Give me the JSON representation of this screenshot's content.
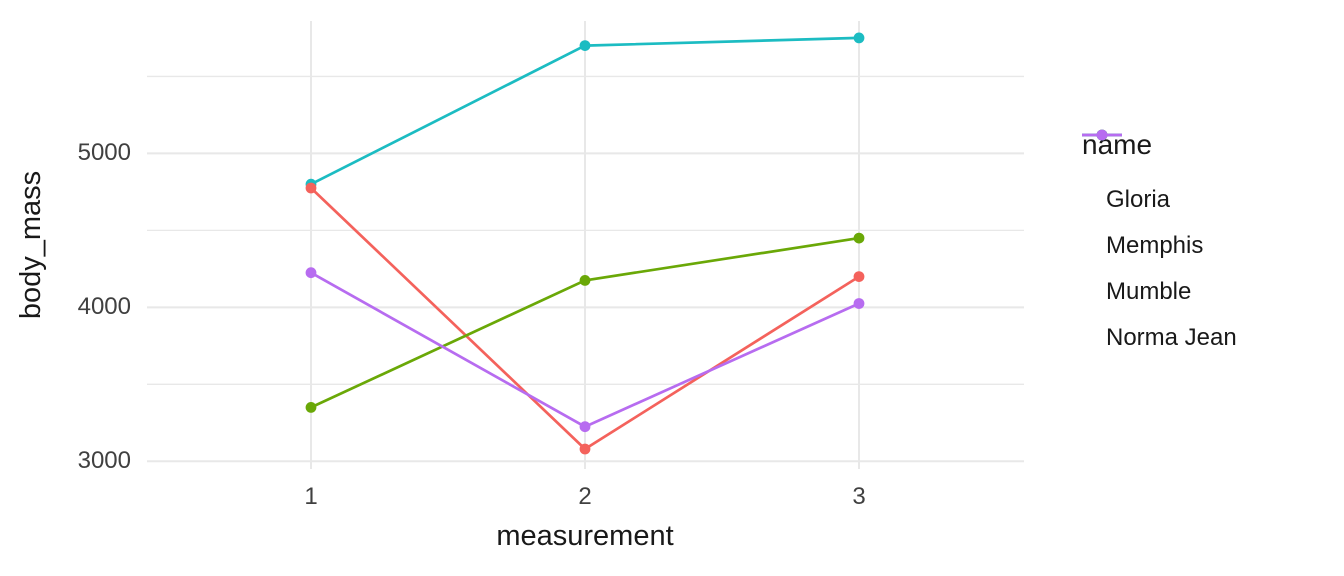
{
  "chart_data": {
    "type": "line",
    "title": "",
    "xlabel": "measurement",
    "ylabel": "body_mass",
    "categories": [
      "1",
      "2",
      "3"
    ],
    "series": [
      {
        "name": "Gloria",
        "color": "#F4625C",
        "values": [
          4775,
          3080,
          4200
        ]
      },
      {
        "name": "Memphis",
        "color": "#6AA807",
        "values": [
          3350,
          4175,
          4450
        ]
      },
      {
        "name": "Mumble",
        "color": "#1CBCC2",
        "values": [
          4800,
          5700,
          5750
        ]
      },
      {
        "name": "Norma Jean",
        "color": "#B76CF0",
        "values": [
          4225,
          3225,
          4025
        ]
      }
    ],
    "y_axis": {
      "ticks": [
        3000,
        4000,
        5000
      ],
      "minor_gridlines": [
        3500,
        4500,
        5500
      ],
      "range": [
        2950,
        5860
      ]
    },
    "x_axis": {
      "ticks": [
        "1",
        "2",
        "3"
      ]
    },
    "legend": {
      "title": "name",
      "position": "right"
    },
    "style": {
      "background": "#FFFFFF",
      "gridline_color": "#E8E8E8",
      "tick_label_color": "#404040",
      "axis_title_color": "#191919",
      "grid": "horizontal major+minor, vertical major only (theme_minimal)"
    }
  }
}
